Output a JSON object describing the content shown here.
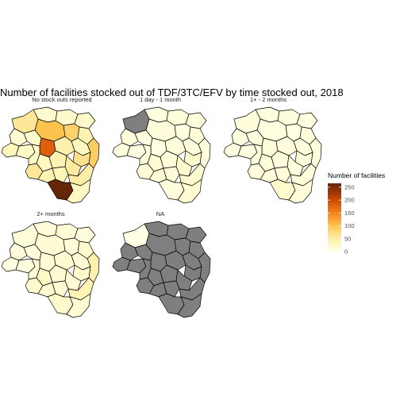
{
  "chart_data": {
    "type": "choropleth",
    "title": "Number of facilities stocked out of TDF/3TC/EFV by time stocked out, 2018",
    "legend": {
      "title": "Number of facilities",
      "ticks": [
        0,
        50,
        100,
        150,
        200,
        250
      ],
      "range": [
        0,
        265
      ],
      "colors": [
        "#ffffe5",
        "#fff7bc",
        "#fee391",
        "#fec44f",
        "#fe9929",
        "#ec7014",
        "#cc4c02",
        "#993404",
        "#662506"
      ],
      "na_color": "#7f7f7f",
      "placement": "right"
    },
    "facets": [
      {
        "label": "No stock outs reported",
        "values": [
          18,
          20,
          22,
          60,
          100,
          85,
          40,
          90,
          30,
          35,
          25,
          15,
          20,
          180,
          45,
          70,
          25,
          30,
          40,
          55,
          60,
          40,
          35,
          50,
          265,
          30
        ]
      },
      {
        "label": "1 day - 1 month",
        "values": [
          5,
          10,
          8,
          null,
          8,
          5,
          12,
          6,
          10,
          4,
          3,
          8,
          5,
          6,
          10,
          20,
          6,
          15,
          9,
          18,
          10,
          12,
          10,
          18,
          8,
          14
        ]
      },
      {
        "label": "1+ - 2 months",
        "values": [
          5,
          8,
          6,
          7,
          6,
          4,
          9,
          6,
          8,
          4,
          3,
          6,
          5,
          10,
          8,
          9,
          6,
          10,
          7,
          8,
          9,
          9,
          10,
          8,
          20,
          10
        ]
      },
      {
        "label": "2+ months",
        "values": [
          10,
          12,
          8,
          10,
          15,
          10,
          18,
          45,
          14,
          6,
          5,
          10,
          8,
          12,
          16,
          20,
          12,
          25,
          14,
          15,
          18,
          16,
          14,
          38,
          20,
          15
        ]
      },
      {
        "label": "NA",
        "values": [
          null,
          null,
          null,
          0,
          null,
          null,
          null,
          null,
          null,
          null,
          null,
          null,
          null,
          null,
          null,
          null,
          null,
          null,
          null,
          null,
          null,
          null,
          null,
          null,
          null,
          null
        ]
      }
    ]
  }
}
